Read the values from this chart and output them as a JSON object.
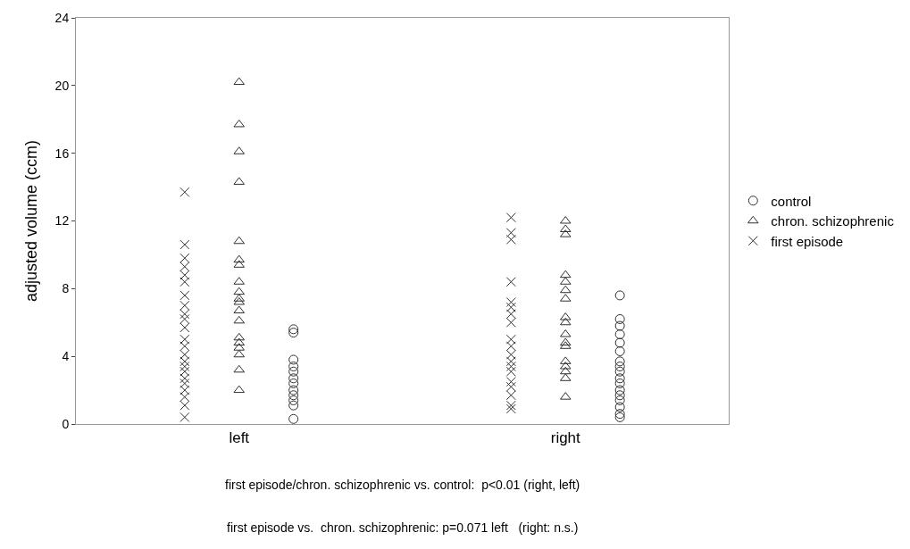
{
  "chart_data": {
    "type": "scatter",
    "ylabel": "adjusted volume (ccm)",
    "categories": [
      "left",
      "right"
    ],
    "ylim": [
      0,
      24
    ],
    "yticks": [
      0,
      4,
      8,
      12,
      16,
      20,
      24
    ],
    "legend": "right",
    "series": [
      {
        "name": "first episode",
        "color": "#303030",
        "marker": "cross",
        "x": [
          "left",
          "left",
          "left",
          "left",
          "left",
          "left",
          "left",
          "left",
          "left",
          "left",
          "left",
          "left",
          "left",
          "left",
          "left",
          "left",
          "left",
          "left",
          "left",
          "left",
          "left",
          "left",
          "left",
          "right",
          "right",
          "right",
          "right",
          "right",
          "right",
          "right",
          "right",
          "right",
          "right",
          "right",
          "right",
          "right",
          "right",
          "right",
          "right",
          "right",
          "right",
          "right"
        ],
        "values": [
          13.7,
          10.6,
          9.8,
          9.3,
          8.8,
          8.4,
          7.6,
          7.0,
          6.5,
          6.2,
          5.7,
          5.0,
          4.6,
          4.1,
          3.7,
          3.4,
          3.1,
          2.7,
          2.4,
          2.0,
          1.6,
          1.1,
          0.4,
          12.2,
          11.3,
          10.9,
          8.4,
          7.2,
          6.9,
          6.5,
          6.0,
          5.0,
          4.6,
          4.1,
          3.7,
          3.4,
          3.1,
          2.5,
          2.2,
          1.7,
          1.1,
          0.9
        ]
      },
      {
        "name": "chron. schizophrenic",
        "color": "#303030",
        "marker": "triangle",
        "x": [
          "left",
          "left",
          "left",
          "left",
          "left",
          "left",
          "left",
          "left",
          "left",
          "left",
          "left",
          "left",
          "left",
          "left",
          "left",
          "left",
          "left",
          "left",
          "left",
          "right",
          "right",
          "right",
          "right",
          "right",
          "right",
          "right",
          "right",
          "right",
          "right",
          "right",
          "right",
          "right",
          "right",
          "right",
          "right",
          "right"
        ],
        "values": [
          20.2,
          17.7,
          16.1,
          14.3,
          10.8,
          9.7,
          9.4,
          8.4,
          7.8,
          7.4,
          7.2,
          6.7,
          6.1,
          5.1,
          4.8,
          4.5,
          4.1,
          3.2,
          2.0,
          12.0,
          11.5,
          11.2,
          8.8,
          8.4,
          7.9,
          7.4,
          6.3,
          6.0,
          5.3,
          4.8,
          4.6,
          3.7,
          3.4,
          3.1,
          2.7,
          1.6
        ]
      },
      {
        "name": "control",
        "color": "#303030",
        "marker": "circle",
        "x": [
          "left",
          "left",
          "left",
          "left",
          "left",
          "left",
          "left",
          "left",
          "left",
          "left",
          "left",
          "left",
          "right",
          "right",
          "right",
          "right",
          "right",
          "right",
          "right",
          "right",
          "right",
          "right",
          "right",
          "right",
          "right",
          "right",
          "right",
          "right",
          "right"
        ],
        "values": [
          5.6,
          5.4,
          3.8,
          3.4,
          3.1,
          2.7,
          2.4,
          2.0,
          1.7,
          1.4,
          1.1,
          0.3,
          7.6,
          6.2,
          5.8,
          5.3,
          4.8,
          4.3,
          3.7,
          3.4,
          3.1,
          2.7,
          2.4,
          2.0,
          1.7,
          1.4,
          1.0,
          0.6,
          0.4
        ]
      }
    ],
    "annotations": [
      "first episode/chron. schizophrenic vs. control:  p<0.01 (right, left)",
      "first episode vs.  chron. schizophrenic: p=0.071 left   (right: n.s.)"
    ]
  }
}
